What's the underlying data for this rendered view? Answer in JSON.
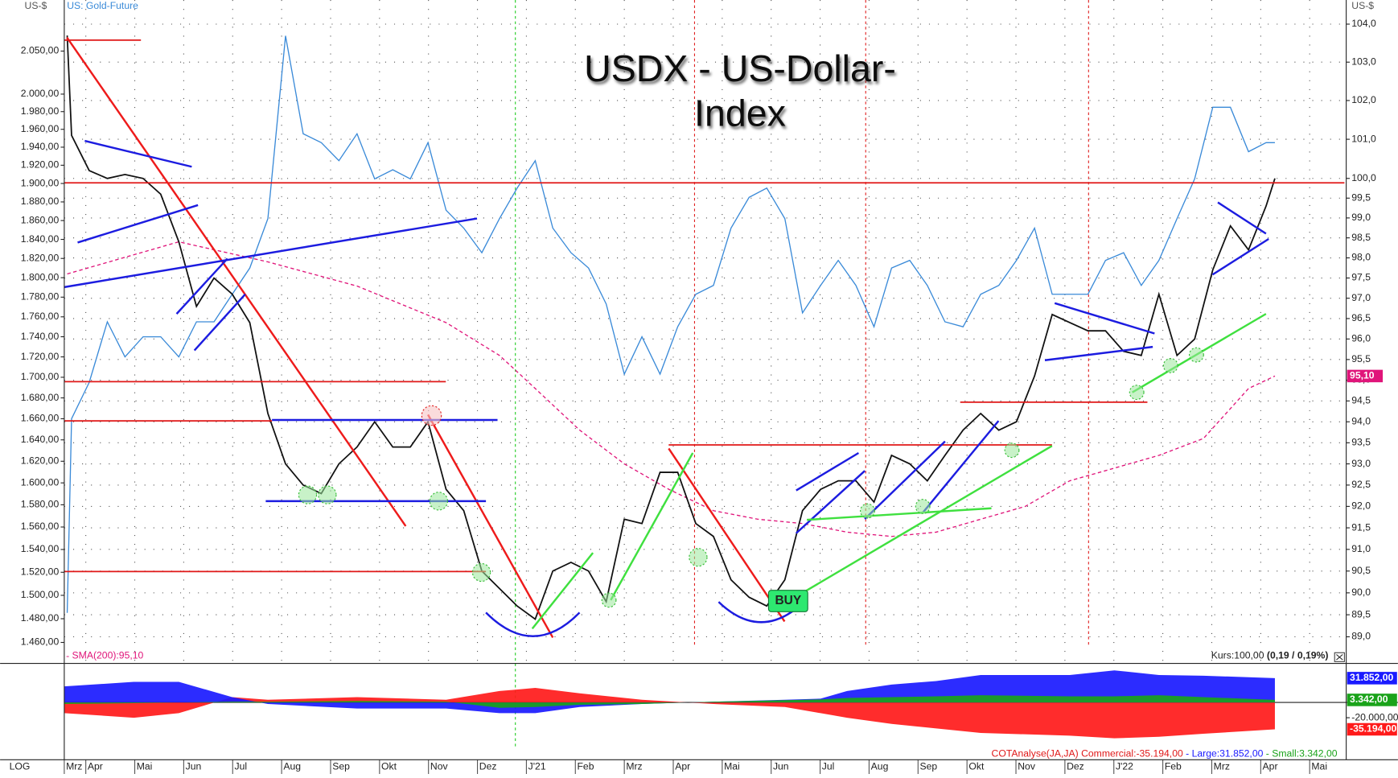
{
  "chart_data": [
    {
      "type": "line",
      "log": true,
      "grid": true,
      "title_lines": [
        "USDX - US-Dollar-",
        "Index"
      ],
      "y_label": "US-$",
      "y2_label": "US-$",
      "info": "Kurs:100,00",
      "info_change": "(0,19 / 0,19%)",
      "buy_label": "BUY",
      "xlim": [
        0.56,
        26.71
      ],
      "xticks": [
        {
          "value": 0,
          "label": "Mrz"
        },
        {
          "value": 1,
          "label": "Apr"
        },
        {
          "value": 2,
          "label": "Mai"
        },
        {
          "value": 3,
          "label": "Jun"
        },
        {
          "value": 4,
          "label": "Jul"
        },
        {
          "value": 5,
          "label": "Aug"
        },
        {
          "value": 6,
          "label": "Sep"
        },
        {
          "value": 7,
          "label": "Okt"
        },
        {
          "value": 8,
          "label": "Nov"
        },
        {
          "value": 9,
          "label": "Dez"
        },
        {
          "value": 10,
          "label": "J'21"
        },
        {
          "value": 11,
          "label": "Feb"
        },
        {
          "value": 12,
          "label": "Mrz"
        },
        {
          "value": 13,
          "label": "Apr"
        },
        {
          "value": 14,
          "label": "Mai"
        },
        {
          "value": 15,
          "label": "Jun"
        },
        {
          "value": 16,
          "label": "Jul"
        },
        {
          "value": 17,
          "label": "Aug"
        },
        {
          "value": 18,
          "label": "Sep"
        },
        {
          "value": 19,
          "label": "Okt"
        },
        {
          "value": 20,
          "label": "Nov"
        },
        {
          "value": 21,
          "label": "Dez"
        },
        {
          "value": 22,
          "label": "J'22"
        },
        {
          "value": 23,
          "label": "Feb"
        },
        {
          "value": 24,
          "label": "Mrz"
        },
        {
          "value": 25,
          "label": "Apr"
        },
        {
          "value": 26,
          "label": "Mai"
        }
      ],
      "ylim": [
        1444,
        2111
      ],
      "yticks": [
        {
          "value": 1460,
          "label": "1.460,00"
        },
        {
          "value": 1480,
          "label": "1.480,00"
        },
        {
          "value": 1500,
          "label": "1.500,00"
        },
        {
          "value": 1520,
          "label": "1.520,00"
        },
        {
          "value": 1540,
          "label": "1.540,00"
        },
        {
          "value": 1560,
          "label": "1.560,00"
        },
        {
          "value": 1580,
          "label": "1.580,00"
        },
        {
          "value": 1600,
          "label": "1.600,00"
        },
        {
          "value": 1620,
          "label": "1.620,00"
        },
        {
          "value": 1640,
          "label": "1.640,00"
        },
        {
          "value": 1660,
          "label": "1.660,00"
        },
        {
          "value": 1680,
          "label": "1.680,00"
        },
        {
          "value": 1700,
          "label": "1.700,00"
        },
        {
          "value": 1720,
          "label": "1.720,00"
        },
        {
          "value": 1740,
          "label": "1.740,00"
        },
        {
          "value": 1760,
          "label": "1.760,00"
        },
        {
          "value": 1780,
          "label": "1.780,00"
        },
        {
          "value": 1800,
          "label": "1.800,00"
        },
        {
          "value": 1820,
          "label": "1.820,00"
        },
        {
          "value": 1840,
          "label": "1.840,00"
        },
        {
          "value": 1860,
          "label": "1.860,00"
        },
        {
          "value": 1880,
          "label": "1.880,00"
        },
        {
          "value": 1900,
          "label": "1.900,00"
        },
        {
          "value": 1920,
          "label": "1.920,00"
        },
        {
          "value": 1940,
          "label": "1.940,00"
        },
        {
          "value": 1960,
          "label": "1.960,00"
        },
        {
          "value": 1980,
          "label": "1.980,00"
        },
        {
          "value": 2000,
          "label": "2.000,00"
        },
        {
          "value": 2050,
          "label": "2.050,00"
        }
      ],
      "y2lim": [
        88.44,
        104.64
      ],
      "y2ticks": [
        {
          "value": 89,
          "label": "89,0"
        },
        {
          "value": 89.5,
          "label": "89,5"
        },
        {
          "value": 90,
          "label": "90,0"
        },
        {
          "value": 90.5,
          "label": "90,5"
        },
        {
          "value": 91,
          "label": "91,0"
        },
        {
          "value": 91.5,
          "label": "91,5"
        },
        {
          "value": 92,
          "label": "92,0"
        },
        {
          "value": 92.5,
          "label": "92,5"
        },
        {
          "value": 93,
          "label": "93,0"
        },
        {
          "value": 93.5,
          "label": "93,5"
        },
        {
          "value": 94,
          "label": "94,0"
        },
        {
          "value": 94.5,
          "label": "94,5"
        },
        {
          "value": 95,
          "label": "95,0"
        },
        {
          "value": 95.5,
          "label": "95,5"
        },
        {
          "value": 96,
          "label": "96,0"
        },
        {
          "value": 96.5,
          "label": "96,5"
        },
        {
          "value": 97,
          "label": "97,0"
        },
        {
          "value": 97.5,
          "label": "97,5"
        },
        {
          "value": 98,
          "label": "98,0"
        },
        {
          "value": 98.5,
          "label": "98,5"
        },
        {
          "value": 99,
          "label": "99,0"
        },
        {
          "value": 99.5,
          "label": "99,5"
        },
        {
          "value": 100,
          "label": "100,0"
        },
        {
          "value": 101,
          "label": "101,0"
        },
        {
          "value": 102,
          "label": "102,0"
        },
        {
          "value": 103,
          "label": "103,0"
        },
        {
          "value": 104,
          "label": "104,0"
        }
      ],
      "x": [
        0.62,
        0.71,
        1.07,
        1.44,
        1.8,
        2.17,
        2.53,
        2.9,
        3.26,
        3.62,
        3.99,
        4.35,
        4.72,
        5.08,
        5.44,
        5.81,
        6.17,
        6.54,
        6.9,
        7.27,
        7.63,
        7.99,
        8.36,
        8.72,
        9.09,
        9.45,
        9.81,
        10.18,
        10.54,
        10.91,
        11.27,
        11.63,
        12.0,
        12.36,
        12.73,
        13.09,
        13.46,
        13.82,
        14.18,
        14.55,
        14.91,
        15.28,
        15.64,
        16.01,
        16.37,
        16.73,
        17.1,
        17.46,
        17.83,
        18.19,
        18.55,
        18.92,
        19.28,
        19.65,
        20.01,
        20.38,
        20.74,
        21.1,
        21.47,
        21.83,
        22.2,
        22.56,
        22.92,
        23.29,
        23.65,
        24.02,
        24.38,
        24.75,
        25.11,
        25.29
      ],
      "series": [
        {
          "name": "US: Gold-Future",
          "color": "#3a8ad8",
          "axis": "y",
          "values": [
            1485,
            1660,
            1695,
            1755,
            1720,
            1740,
            1740,
            1720,
            1755,
            1755,
            1783,
            1810,
            1862,
            2068,
            1955,
            1945,
            1925,
            1955,
            1905,
            1915,
            1905,
            1945,
            1871,
            1852,
            1826,
            1862,
            1895,
            1925,
            1852,
            1826,
            1810,
            1773,
            1703,
            1740,
            1703,
            1750,
            1783,
            1792,
            1852,
            1885,
            1895,
            1862,
            1764,
            1792,
            1818,
            1792,
            1750,
            1810,
            1818,
            1792,
            1755,
            1750,
            1783,
            1792,
            1818,
            1852,
            1783,
            1783,
            1783,
            1818,
            1826,
            1792,
            1818,
            1862,
            1905,
            1985,
            1985,
            1935,
            1945,
            1945
          ]
        },
        {
          "name": "SMA(200):95,10",
          "color": "#e0157a",
          "axis": "y2",
          "dashed": true,
          "last_label": "95,10",
          "x": [
            0.62,
            2.9,
            4.72,
            6.54,
            8.36,
            9.45,
            10.18,
            11.09,
            12.0,
            12.91,
            13.82,
            14.73,
            15.64,
            16.55,
            17.46,
            18.37,
            19.28,
            20.19,
            21.1,
            22.01,
            22.92,
            23.83,
            24.75,
            25.29
          ],
          "values": [
            97.6,
            98.4,
            97.9,
            97.3,
            96.4,
            95.6,
            94.8,
            93.8,
            93.0,
            92.4,
            91.9,
            91.7,
            91.6,
            91.4,
            91.3,
            91.4,
            91.7,
            92.0,
            92.6,
            92.9,
            93.2,
            93.6,
            94.8,
            95.1
          ]
        },
        {
          "color": "#111111",
          "axis": "y2",
          "values": [
            103.7,
            101.1,
            100.2,
            100.0,
            100.1,
            100.0,
            99.6,
            98.4,
            96.8,
            97.5,
            97.1,
            96.4,
            94.2,
            93.0,
            92.5,
            92.3,
            93.0,
            93.4,
            94.0,
            93.4,
            93.4,
            94.0,
            92.4,
            91.9,
            90.5,
            90.1,
            89.7,
            89.4,
            90.5,
            90.7,
            90.5,
            89.8,
            91.7,
            91.6,
            92.8,
            92.8,
            91.6,
            91.3,
            90.3,
            89.9,
            89.7,
            90.3,
            91.9,
            92.4,
            92.6,
            92.6,
            92.1,
            93.2,
            93.0,
            92.6,
            93.2,
            93.8,
            94.2,
            93.8,
            94.0,
            95.1,
            96.6,
            96.4,
            96.2,
            96.2,
            95.7,
            95.6,
            97.1,
            95.6,
            96.0,
            97.7,
            98.8,
            98.2,
            99.3,
            100.0
          ]
        }
      ],
      "footer_label": "LOG"
    },
    {
      "type": "area",
      "title": "COTAnalyse(JA,JA)",
      "xlim": [
        0.56,
        26.71
      ],
      "ylim": [
        -61000,
        50000
      ],
      "yticks": [
        {
          "value": -20000,
          "label": "-20.000,00"
        }
      ],
      "x": [
        0.56,
        1.98,
        2.9,
        3.99,
        4.72,
        6.54,
        8.36,
        9.45,
        10.18,
        11.09,
        12.36,
        13.82,
        15.28,
        16.01,
        16.55,
        17.46,
        18.37,
        19.28,
        21.1,
        22.01,
        22.92,
        23.83,
        25.29
      ],
      "series": [
        {
          "name": "Commercial:-35.194,00",
          "color": "#ff1a1a",
          "last_label": "-35.194,00",
          "values": [
            -14000,
            -20000,
            -14000,
            7000,
            3500,
            7000,
            3500,
            15000,
            19000,
            12000,
            3500,
            -2000,
            -6000,
            -14000,
            -20000,
            -28000,
            -34000,
            -40000,
            -43500,
            -47000,
            -45000,
            -41000,
            -35194
          ]
        },
        {
          "name": "Large:31.852,00",
          "color": "#1a1aff",
          "last_label": "31.852,00",
          "values": [
            21000,
            27000,
            27000,
            7000,
            -2000,
            -8000,
            -8000,
            -14000,
            -14000,
            -6000,
            -2000,
            1000,
            3500,
            5000,
            15000,
            23500,
            28000,
            36000,
            36000,
            42000,
            36000,
            35000,
            31852
          ]
        },
        {
          "name": "Small:3.342,00",
          "color": "#1aa31a",
          "last_label": "3.342,00",
          "values": [
            -2000,
            -1000,
            0,
            1000,
            1000,
            2000,
            1000,
            -7000,
            -6000,
            -3000,
            -2000,
            1000,
            3000,
            4000,
            6000,
            7000,
            8000,
            9500,
            8000,
            8000,
            9500,
            7000,
            3342
          ]
        }
      ]
    }
  ]
}
